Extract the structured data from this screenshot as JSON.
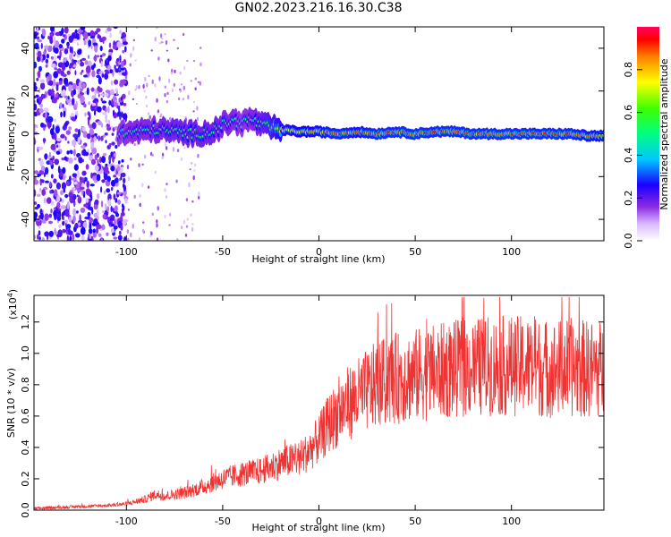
{
  "title": "GN02.2023.216.16.30.C38",
  "chart_data": [
    {
      "type": "heatmap",
      "xlabel": "Height of straight line (km)",
      "ylabel": "Frequency (Hz)",
      "xlim": [
        -148,
        148
      ],
      "ylim": [
        -50,
        50
      ],
      "xticks": [
        -100,
        -50,
        0,
        50,
        100
      ],
      "yticks": [
        -40,
        -20,
        0,
        20,
        40
      ],
      "colorbar": {
        "label": "Normalized spectral amplitude",
        "range": [
          0,
          1
        ],
        "ticks": [
          "0.0",
          "0.2",
          "0.4",
          "0.6",
          "0.8"
        ],
        "colors": [
          "#ffffff",
          "#b070ff",
          "#6a00ff",
          "#0000ff",
          "#00c8ff",
          "#00ff80",
          "#40ff00",
          "#ffff00",
          "#ff8000",
          "#ff0000",
          "#ff0060"
        ]
      },
      "signal_track": {
        "x": [
          -104,
          -95,
          -85,
          -75,
          -65,
          -55,
          -50,
          -45,
          -40,
          -35,
          -30,
          -25,
          -20,
          -10,
          0,
          10,
          20,
          30,
          40,
          50,
          60,
          70,
          80,
          90,
          100,
          110,
          120,
          130,
          140,
          148
        ],
        "freq": [
          0,
          1,
          2,
          1,
          0,
          1,
          4,
          6,
          5,
          7,
          4,
          3,
          2,
          1,
          1,
          0,
          1,
          0,
          1,
          0,
          1,
          1,
          0,
          0,
          0,
          0,
          0,
          0,
          -1,
          -1
        ],
        "amplitude": [
          0.5,
          0.55,
          0.55,
          0.6,
          0.6,
          0.6,
          0.55,
          0.55,
          0.5,
          0.55,
          0.6,
          0.7,
          0.8,
          0.85,
          0.9,
          0.95,
          0.9,
          0.95,
          0.95,
          0.95,
          0.95,
          0.95,
          0.95,
          0.95,
          0.95,
          0.95,
          0.95,
          0.95,
          0.9,
          0.9
        ]
      }
    },
    {
      "type": "line",
      "xlabel": "Height of straight line (km)",
      "ylabel": "SNR (10 * v/v)",
      "y_multiplier": "(x10",
      "y_multiplier_exp": "4",
      "y_multiplier_close": ")",
      "xlim": [
        -148,
        148
      ],
      "ylim": [
        0.0,
        1.37
      ],
      "xticks": [
        -100,
        -50,
        0,
        50,
        100
      ],
      "yticks": [
        "0.0",
        "0.2",
        "0.4",
        "0.6",
        "0.8",
        "1.0",
        "1.2"
      ],
      "color": "#ee3333",
      "series": [
        {
          "x": [
            -148,
            -130,
            -110,
            -100,
            -90,
            -85,
            -80,
            -70,
            -60,
            -50,
            -40,
            -30,
            -20,
            -10,
            -5,
            0,
            5,
            10,
            15,
            20,
            25,
            30,
            35,
            40,
            50,
            60,
            70,
            80,
            90,
            100,
            110,
            120,
            130,
            140,
            148
          ],
          "y": [
            0.01,
            0.02,
            0.03,
            0.04,
            0.07,
            0.1,
            0.09,
            0.11,
            0.15,
            0.2,
            0.23,
            0.25,
            0.3,
            0.33,
            0.38,
            0.45,
            0.55,
            0.62,
            0.68,
            0.72,
            0.76,
            0.8,
            0.82,
            0.84,
            0.86,
            0.88,
            0.9,
            0.91,
            0.92,
            0.92,
            0.92,
            0.9,
            0.91,
            0.9,
            0.9
          ]
        }
      ]
    }
  ]
}
